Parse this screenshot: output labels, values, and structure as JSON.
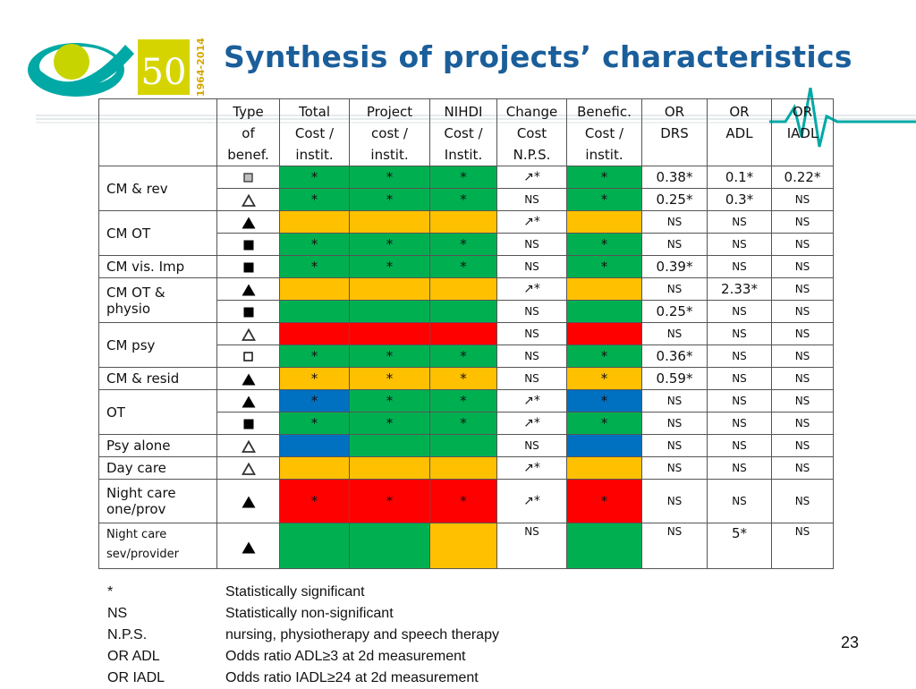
{
  "title": "Synthesis of projects’ characteristics",
  "logo": {
    "years": "1964-2014",
    "jubilee": "50"
  },
  "colors": {
    "green": "#00b050",
    "yellow": "#ffc000",
    "red": "#ff0000",
    "blue": "#0070c0",
    "title": "#1a5e9a",
    "accent": "#00a9a5"
  },
  "table": {
    "headers": [
      "",
      "Type of benef.",
      "Total Cost / instit.",
      "Project cost / instit.",
      "NIHDI Cost / Instit.",
      "Change Cost N.P.S.",
      "Benefic. Cost / instit.",
      "OR DRS",
      "OR ADL",
      "OR IADL"
    ],
    "header_lines": [
      [
        ""
      ],
      [
        "Type",
        "of",
        "benef."
      ],
      [
        "Total",
        "Cost /",
        "instit."
      ],
      [
        "Project",
        "cost /",
        "instit."
      ],
      [
        "NIHDI",
        "Cost /",
        "Instit."
      ],
      [
        "Change",
        "Cost",
        "N.P.S."
      ],
      [
        "Benefic.",
        "Cost /",
        "instit."
      ],
      [
        "OR",
        "DRS"
      ],
      [
        "OR",
        "ADL"
      ],
      [
        "OR",
        "IADL"
      ]
    ],
    "groups": [
      {
        "label": "CM & rev",
        "rows": [
          {
            "icon": "small-square-icon",
            "total": "*",
            "project": "*",
            "nihdi": "*",
            "change": "↗*",
            "benefic": "*",
            "or_drs": "0.38*",
            "or_adl": "0.1*",
            "or_iadl": "0.22*"
          },
          {
            "icon": "triangle-outline-icon",
            "total": "*",
            "project": "*",
            "nihdi": "*",
            "change": "NS",
            "benefic": "*",
            "or_drs": "0.25*",
            "or_adl": "0.3*",
            "or_iadl": "NS"
          }
        ]
      },
      {
        "label": "CM OT",
        "rows": [
          {
            "icon": "triangle-filled-icon",
            "total": "",
            "project": "",
            "nihdi": "",
            "change": "↗*",
            "benefic": "",
            "or_drs": "NS",
            "or_adl": "NS",
            "or_iadl": "NS"
          },
          {
            "icon": "square-filled-icon",
            "total": "*",
            "project": "*",
            "nihdi": "*",
            "change": "NS",
            "benefic": "*",
            "or_drs": "NS",
            "or_adl": "NS",
            "or_iadl": "NS"
          }
        ]
      },
      {
        "label": "CM vis. Imp",
        "rows": [
          {
            "icon": "square-filled-icon",
            "total": "*",
            "project": "*",
            "nihdi": "*",
            "change": "NS",
            "benefic": "*",
            "or_drs": "0.39*",
            "or_adl": "NS",
            "or_iadl": "NS"
          }
        ]
      },
      {
        "label": "CM OT & physio",
        "label_lines": [
          "CM OT &",
          "physio"
        ],
        "rows": [
          {
            "icon": "triangle-filled-icon",
            "total": "",
            "project": "",
            "nihdi": "",
            "change": "↗*",
            "benefic": "",
            "or_drs": "NS",
            "or_adl": "2.33*",
            "or_iadl": "NS"
          },
          {
            "icon": "square-filled-icon",
            "total": "",
            "project": "",
            "nihdi": "",
            "change": "NS",
            "benefic": "",
            "or_drs": "0.25*",
            "or_adl": "NS",
            "or_iadl": "NS"
          }
        ]
      },
      {
        "label": "CM psy",
        "rows": [
          {
            "icon": "triangle-outline-icon",
            "total": "",
            "project": "",
            "nihdi": "",
            "change": "NS",
            "benefic": "",
            "or_drs": "NS",
            "or_adl": "NS",
            "or_iadl": "NS"
          },
          {
            "icon": "square-outline-icon",
            "total": "*",
            "project": "*",
            "nihdi": "*",
            "change": "NS",
            "benefic": "*",
            "or_drs": "0.36*",
            "or_adl": "NS",
            "or_iadl": "NS"
          }
        ]
      },
      {
        "label": "CM & resid",
        "rows": [
          {
            "icon": "triangle-filled-icon",
            "total": "*",
            "project": "*",
            "nihdi": "*",
            "change": "NS",
            "benefic": "*",
            "or_drs": "0.59*",
            "or_adl": "NS",
            "or_iadl": "NS"
          }
        ]
      },
      {
        "label": "OT",
        "rows": [
          {
            "icon": "triangle-filled-icon",
            "total": "*",
            "project": "*",
            "nihdi": "*",
            "change": "↗*",
            "benefic": "*",
            "or_drs": "NS",
            "or_adl": "NS",
            "or_iadl": "NS"
          },
          {
            "icon": "square-filled-icon",
            "total": "*",
            "project": "*",
            "nihdi": "*",
            "change": "↗*",
            "benefic": "*",
            "or_drs": "NS",
            "or_adl": "NS",
            "or_iadl": "NS"
          }
        ]
      },
      {
        "label": "Psy alone",
        "rows": [
          {
            "icon": "triangle-outline-icon",
            "total": "",
            "project": "",
            "nihdi": "",
            "change": "NS",
            "benefic": "",
            "or_drs": "NS",
            "or_adl": "NS",
            "or_iadl": "NS"
          }
        ]
      },
      {
        "label": "Day care",
        "rows": [
          {
            "icon": "triangle-outline-icon",
            "total": "",
            "project": "",
            "nihdi": "",
            "change": "↗*",
            "benefic": "",
            "or_drs": "NS",
            "or_adl": "NS",
            "or_iadl": "NS"
          }
        ]
      },
      {
        "label": "Night care one/prov",
        "label_lines": [
          "Night care",
          "one/prov"
        ],
        "rows": [
          {
            "icon": "triangle-filled-icon",
            "total": "*",
            "project": "*",
            "nihdi": "*",
            "change": "↗*",
            "benefic": "*",
            "or_drs": "NS",
            "or_adl": "NS",
            "or_iadl": "NS"
          }
        ]
      },
      {
        "label": "Night care sev/provider",
        "label_lines": [
          "Night care",
          "sev/provider"
        ],
        "rows": [
          {
            "icon": "triangle-filled-icon",
            "total": "",
            "project": "",
            "nihdi": "",
            "change": "NS",
            "benefic": "",
            "or_drs": "NS",
            "or_adl": "5*",
            "or_iadl": "NS"
          }
        ]
      }
    ],
    "cell_colors": [
      [
        "G",
        "G",
        "G",
        "G"
      ],
      [
        "G",
        "G",
        "G",
        "G"
      ],
      [
        "Y",
        "Y",
        "Y",
        "Y"
      ],
      [
        "G",
        "G",
        "G",
        "G"
      ],
      [
        "G",
        "G",
        "G",
        "G"
      ],
      [
        "Y",
        "Y",
        "Y",
        "Y"
      ],
      [
        "G",
        "G",
        "G",
        "G"
      ],
      [
        "R",
        "R",
        "R",
        "R"
      ],
      [
        "G",
        "G",
        "G",
        "G"
      ],
      [
        "Y",
        "Y",
        "Y",
        "Y"
      ],
      [
        "B",
        "G",
        "G",
        "B"
      ],
      [
        "G",
        "G",
        "G",
        "G"
      ],
      [
        "B",
        "G",
        "G",
        "B"
      ],
      [
        "Y",
        "Y",
        "Y",
        "Y"
      ],
      [
        "R",
        "R",
        "R",
        "R"
      ],
      [
        "G",
        "G",
        "Y",
        "G"
      ]
    ]
  },
  "legend": [
    {
      "key": "*",
      "text": "Statistically significant"
    },
    {
      "key": "NS",
      "text": "Statistically non-significant"
    },
    {
      "key": "N.P.S.",
      "text": "nursing, physiotherapy and speech therapy"
    },
    {
      "key": "OR ADL",
      "text": "Odds ratio ADL≥3 at 2d measurement"
    },
    {
      "key": "OR IADL",
      "text": "Odds ratio IADL≥24 at 2d measurement"
    }
  ],
  "page_number": "23"
}
